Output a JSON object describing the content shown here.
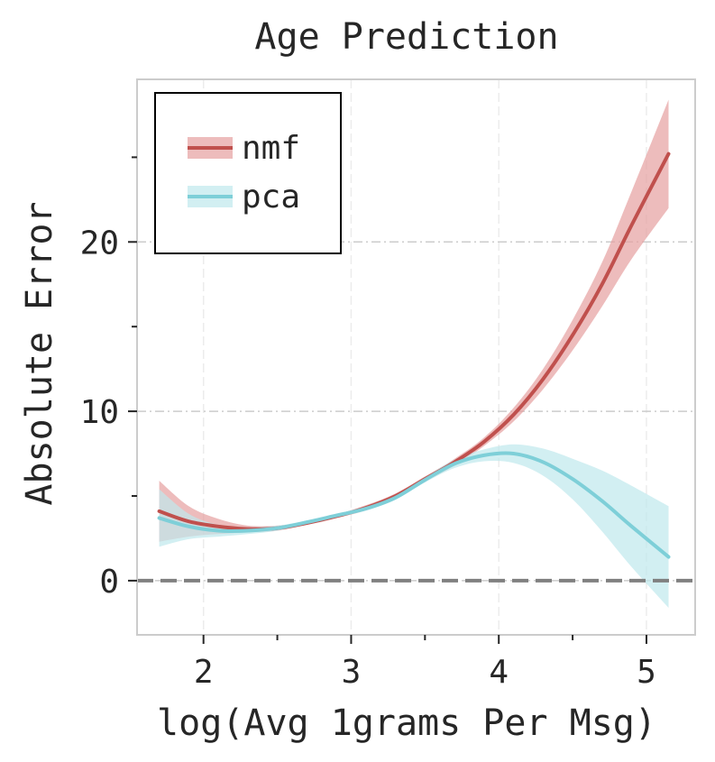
{
  "chart_data": {
    "type": "line",
    "title": "Age Prediction",
    "xlabel": "log(Avg 1grams Per Msg)",
    "ylabel": "Absolute Error",
    "xlim": [
      1.55,
      5.33
    ],
    "ylim": [
      -3.2,
      29.6
    ],
    "x_ticks": [
      2,
      3,
      4,
      5
    ],
    "x_minor_ticks": [
      2.5,
      3.5,
      4.5
    ],
    "y_ticks": [
      0,
      10,
      20
    ],
    "y_minor_ticks": [
      5,
      15,
      25
    ],
    "reference_line": {
      "y": 0,
      "style": "dashed",
      "color": "#808080"
    },
    "grid": true,
    "legend": {
      "position": "top-left"
    },
    "series": [
      {
        "name": "nmf",
        "color": "#c0504d",
        "band_color": "#e6a0a0",
        "x": [
          1.7,
          1.9,
          2.1,
          2.3,
          2.5,
          2.7,
          2.9,
          3.1,
          3.3,
          3.5,
          3.7,
          3.9,
          4.1,
          4.3,
          4.5,
          4.7,
          4.9,
          5.15
        ],
        "y": [
          4.1,
          3.5,
          3.2,
          3.05,
          3.1,
          3.4,
          3.8,
          4.3,
          5.0,
          6.0,
          7.0,
          8.2,
          9.8,
          11.9,
          14.5,
          17.5,
          21.0,
          25.2
        ],
        "lower": [
          2.3,
          2.6,
          2.75,
          2.85,
          2.95,
          3.3,
          3.7,
          4.15,
          4.85,
          5.85,
          6.8,
          7.95,
          9.4,
          11.3,
          13.6,
          16.2,
          19.0,
          22.0
        ],
        "upper": [
          5.9,
          4.4,
          3.65,
          3.25,
          3.25,
          3.5,
          3.9,
          4.45,
          5.15,
          6.15,
          7.2,
          8.45,
          10.2,
          12.5,
          15.4,
          18.8,
          23.0,
          28.4
        ]
      },
      {
        "name": "pca",
        "color": "#7ecfd8",
        "band_color": "#bfe8ec",
        "x": [
          1.7,
          1.9,
          2.1,
          2.3,
          2.5,
          2.7,
          2.9,
          3.1,
          3.3,
          3.5,
          3.7,
          3.9,
          4.1,
          4.3,
          4.5,
          4.7,
          4.9,
          5.15
        ],
        "y": [
          3.7,
          3.2,
          2.95,
          2.95,
          3.1,
          3.45,
          3.85,
          4.25,
          4.9,
          5.95,
          6.9,
          7.4,
          7.5,
          7.0,
          6.0,
          4.7,
          3.2,
          1.4
        ],
        "lower": [
          2.0,
          2.45,
          2.6,
          2.75,
          2.95,
          3.35,
          3.75,
          4.15,
          4.8,
          5.8,
          6.65,
          7.05,
          6.95,
          6.2,
          4.8,
          2.9,
          0.8,
          -1.6
        ],
        "upper": [
          5.4,
          3.95,
          3.3,
          3.15,
          3.25,
          3.55,
          3.95,
          4.35,
          5.0,
          6.1,
          7.15,
          7.75,
          8.05,
          7.8,
          7.2,
          6.5,
          5.6,
          4.4
        ]
      }
    ]
  }
}
